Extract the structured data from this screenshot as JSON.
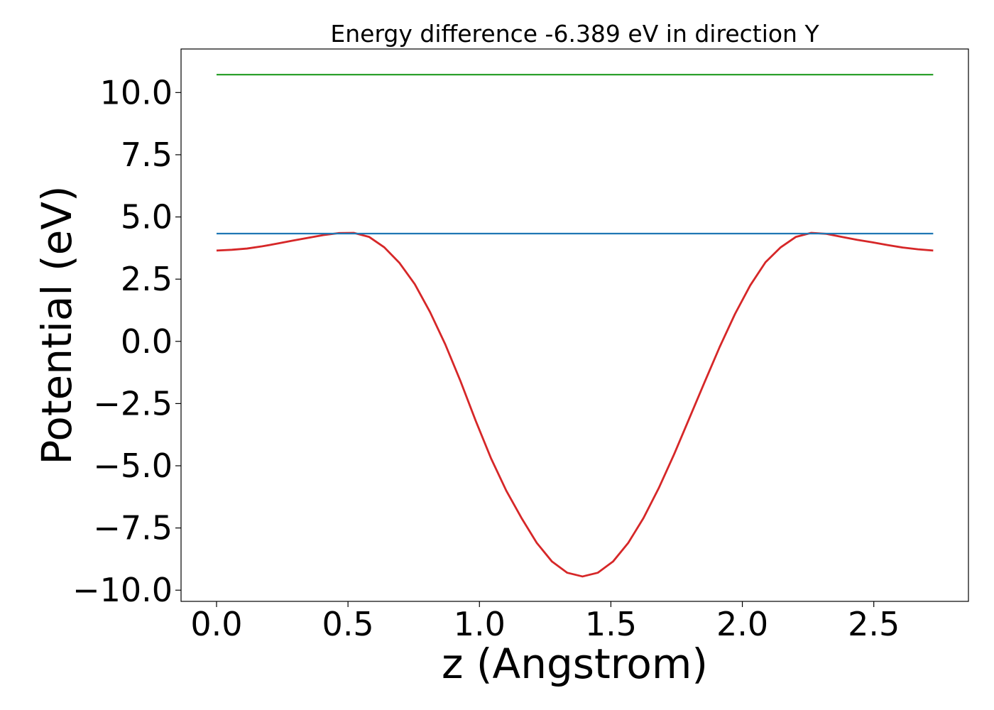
{
  "chart_data": {
    "type": "line",
    "title": "Energy difference -6.389 eV in direction Y",
    "xlabel": "z (Angstrom)",
    "ylabel": "Potential (eV)",
    "xlim": [
      -0.135,
      2.86
    ],
    "ylim": [
      -10.45,
      11.75
    ],
    "x_ticks": [
      0.0,
      0.5,
      1.0,
      1.5,
      2.0,
      2.5
    ],
    "x_tick_labels": [
      "0.0",
      "0.5",
      "1.0",
      "1.5",
      "2.0",
      "2.5"
    ],
    "y_ticks": [
      -10.0,
      -7.5,
      -5.0,
      -2.5,
      0.0,
      2.5,
      5.0,
      7.5,
      10.0
    ],
    "y_tick_labels": [
      "−10.0",
      "−7.5",
      "−5.0",
      "−2.5",
      "0.0",
      "2.5",
      "5.0",
      "7.5",
      "10.0"
    ],
    "grid": false,
    "series": [
      {
        "color": "#d62728",
        "x": [
          0.0,
          0.058,
          0.116,
          0.174,
          0.232,
          0.29,
          0.348,
          0.406,
          0.464,
          0.522,
          0.58,
          0.638,
          0.696,
          0.754,
          0.812,
          0.87,
          0.928,
          0.986,
          1.044,
          1.102,
          1.16,
          1.218,
          1.276,
          1.334,
          1.392,
          1.45,
          1.508,
          1.566,
          1.624,
          1.682,
          1.74,
          1.798,
          1.856,
          1.914,
          1.972,
          2.03,
          2.088,
          2.146,
          2.204,
          2.262,
          2.32,
          2.378,
          2.436,
          2.494,
          2.552,
          2.61,
          2.668,
          2.726
        ],
        "y": [
          3.65,
          3.68,
          3.73,
          3.82,
          3.93,
          4.05,
          4.16,
          4.27,
          4.35,
          4.36,
          4.2,
          3.78,
          3.15,
          2.3,
          1.18,
          -0.12,
          -1.6,
          -3.2,
          -4.7,
          -6.0,
          -7.1,
          -8.1,
          -8.85,
          -9.3,
          -9.45,
          -9.3,
          -8.85,
          -8.1,
          -7.1,
          -5.9,
          -4.55,
          -3.1,
          -1.65,
          -0.22,
          1.1,
          2.25,
          3.18,
          3.78,
          4.2,
          4.36,
          4.32,
          4.2,
          4.08,
          3.98,
          3.87,
          3.77,
          3.7,
          3.65
        ]
      },
      {
        "color": "#1f77b4",
        "x": [
          0.0,
          2.726
        ],
        "y": [
          4.33,
          4.33
        ]
      },
      {
        "color": "#2ca02c",
        "x": [
          0.0,
          2.726
        ],
        "y": [
          10.72,
          10.72
        ]
      }
    ]
  }
}
